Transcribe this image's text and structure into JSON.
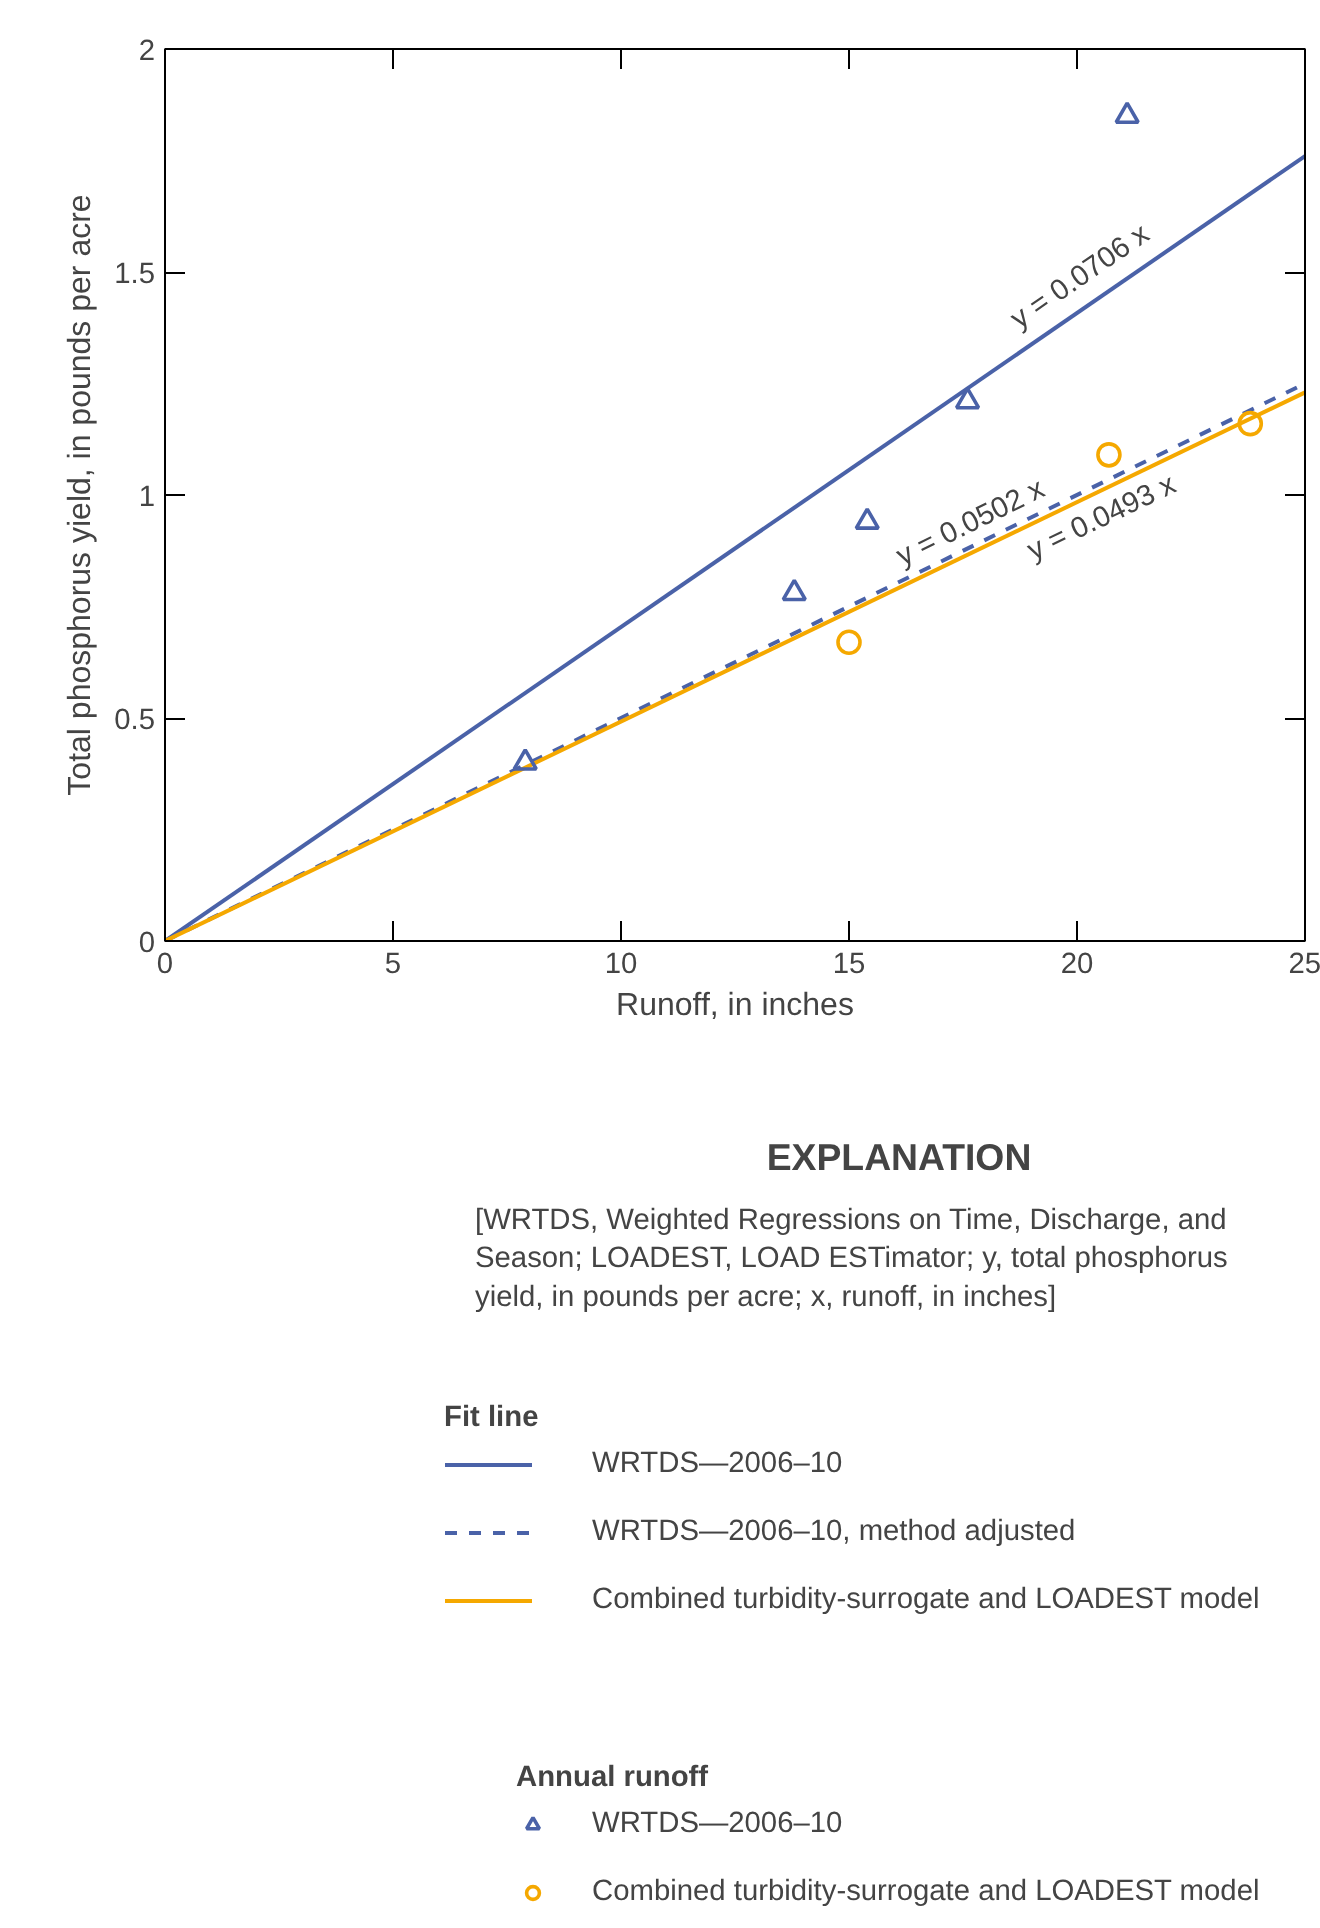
{
  "chart_data": {
    "type": "scatter",
    "xlabel": "Runoff, in inches",
    "ylabel": "Total phosphorus yield, in pounds per acre",
    "xlim": [
      0,
      25
    ],
    "xticks": [
      0,
      5,
      10,
      15,
      20,
      25
    ],
    "ylim": [
      0,
      2
    ],
    "yticks": [
      0,
      0.5,
      1,
      1.5,
      2
    ],
    "grid": false,
    "legend": "bottom",
    "legend_title": "EXPLANATION",
    "series": [
      {
        "type": "line",
        "name": "WRTDS—2006–10",
        "color": "#4a62a8",
        "line_style": "solid",
        "x": [
          0,
          25
        ],
        "values": [
          0,
          1.76
        ]
      },
      {
        "type": "line",
        "name": "WRTDS—2006–10, method adjusted",
        "color": "#4a62a8",
        "line_style": "dashed",
        "x": [
          0,
          25
        ],
        "values": [
          0,
          1.25
        ]
      },
      {
        "type": "line",
        "name": "Combined turbidity-surrogate and LOADEST model",
        "color": "#f5a800",
        "line_style": "solid",
        "x": [
          0,
          25
        ],
        "values": [
          0,
          1.23
        ]
      },
      {
        "name": "WRTDS—2006–10",
        "color": "#4a62a8",
        "marker": "triangle",
        "x": [
          7.9,
          13.8,
          15.4,
          17.6,
          21.1
        ],
        "values": [
          0.4,
          0.78,
          0.94,
          1.21,
          1.85
        ]
      },
      {
        "name": "Combined turbidity-surrogate and LOADEST model",
        "color": "#f5a800",
        "marker": "circle",
        "x": [
          15.0,
          20.7,
          23.8
        ],
        "values": [
          0.67,
          1.09,
          1.16
        ]
      }
    ],
    "annotations": [
      {
        "text": "y = 0.0706 x",
        "x": 20.4,
        "y": 1.44
      },
      {
        "text": "y = 0.0502 x",
        "x": 17.85,
        "y": 0.9
      },
      {
        "text": "y = 0.0493 x",
        "x": 20.3,
        "y": 1.0
      },
      "[WRTDS, Weighted Regressions on Time, Discharge, and\nSeason; LOADEST, LOAD ESTimator; y, total phosphorus\nyield, in pounds per acre; x, runoff, in inches]",
      "Fit line",
      "Annual runoff"
    ]
  }
}
